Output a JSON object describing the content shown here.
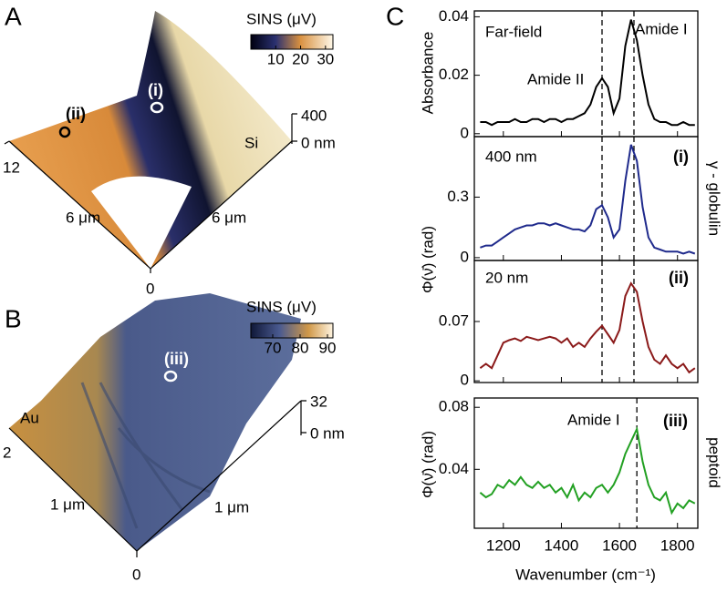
{
  "figure": {
    "panel_c_letter": "C",
    "ylabel_top": "Absorbance",
    "ylabel_mid": "Φ(ν̄) (rad)",
    "ylabel_bottom": "Φ(ν̄) (rad)",
    "side_label_mid": "γ - globulin",
    "side_label_bottom": "peptoid",
    "xlabel": "Wavenumber (cm⁻¹)"
  },
  "images": {
    "A": {
      "letter": "A",
      "colorbar_title": "SINS (μV)",
      "colorbar": {
        "range": [
          0,
          33
        ],
        "ticks": [
          10,
          20,
          30
        ]
      },
      "labels": {
        "i": "(i)",
        "ii": "(ii)",
        "si": "Si",
        "z_top": "400",
        "z_bottom": "0 nm",
        "y_top": "12",
        "y_mid": "6 μm",
        "x_mid": "6 μm",
        "origin": "0"
      }
    },
    "B": {
      "letter": "B",
      "colorbar_title": "SINS (μV)",
      "colorbar": {
        "range": [
          62,
          92
        ],
        "ticks": [
          70,
          80,
          90
        ]
      },
      "labels": {
        "iii": "(iii)",
        "au": "Au",
        "z_top": "32",
        "z_bottom": "0 nm",
        "y_top": "2",
        "y_mid": "1 μm",
        "x_mid": "1 μm",
        "origin": "0"
      }
    }
  },
  "chart_data": [
    {
      "type": "line",
      "label": "Far-field",
      "annotations": [
        "Amide II",
        "Amide I"
      ],
      "xlim": [
        1100,
        1870
      ],
      "ylim": [
        -0.001,
        0.042
      ],
      "yticks": [
        0,
        0.02,
        0.04
      ],
      "vlines": [
        1540,
        1650
      ],
      "x": [
        1120,
        1140,
        1160,
        1180,
        1200,
        1220,
        1240,
        1260,
        1280,
        1300,
        1320,
        1340,
        1360,
        1380,
        1400,
        1420,
        1440,
        1460,
        1480,
        1500,
        1520,
        1540,
        1560,
        1580,
        1600,
        1620,
        1640,
        1660,
        1680,
        1700,
        1720,
        1740,
        1760,
        1780,
        1800,
        1820,
        1840,
        1860
      ],
      "series": [
        {
          "color": "#000000",
          "values": [
            0.004,
            0.004,
            0.003,
            0.004,
            0.004,
            0.004,
            0.005,
            0.004,
            0.004,
            0.005,
            0.005,
            0.004,
            0.005,
            0.005,
            0.004,
            0.005,
            0.005,
            0.006,
            0.007,
            0.01,
            0.016,
            0.019,
            0.016,
            0.007,
            0.012,
            0.03,
            0.039,
            0.032,
            0.02,
            0.01,
            0.005,
            0.004,
            0.004,
            0.003,
            0.003,
            0.004,
            0.003,
            0.003
          ]
        }
      ]
    },
    {
      "type": "line",
      "label": "400 nm",
      "tag": "(i)",
      "xlim": [
        1100,
        1870
      ],
      "ylim": [
        -0.014,
        0.6
      ],
      "yticks": [
        0,
        0.3
      ],
      "vlines": [
        1540,
        1650
      ],
      "x": [
        1120,
        1140,
        1160,
        1180,
        1200,
        1220,
        1240,
        1260,
        1280,
        1300,
        1320,
        1340,
        1360,
        1380,
        1400,
        1420,
        1440,
        1460,
        1480,
        1500,
        1520,
        1540,
        1560,
        1580,
        1600,
        1620,
        1640,
        1660,
        1680,
        1700,
        1720,
        1740,
        1760,
        1780,
        1800,
        1820,
        1840,
        1860
      ],
      "series": [
        {
          "color": "#1f2a8c",
          "values": [
            0.05,
            0.06,
            0.06,
            0.08,
            0.1,
            0.12,
            0.14,
            0.15,
            0.16,
            0.16,
            0.17,
            0.17,
            0.16,
            0.17,
            0.16,
            0.15,
            0.14,
            0.14,
            0.13,
            0.16,
            0.24,
            0.26,
            0.2,
            0.1,
            0.14,
            0.38,
            0.56,
            0.48,
            0.25,
            0.1,
            0.05,
            0.04,
            0.03,
            0.03,
            0.03,
            0.02,
            0.03,
            0.02
          ]
        }
      ]
    },
    {
      "type": "line",
      "label": "20 nm",
      "tag": "(ii)",
      "xlim": [
        1100,
        1870
      ],
      "ylim": [
        -0.002,
        0.142
      ],
      "yticks": [
        0,
        0.07
      ],
      "vlines": [
        1540,
        1650
      ],
      "x": [
        1120,
        1140,
        1160,
        1180,
        1200,
        1220,
        1240,
        1260,
        1280,
        1300,
        1320,
        1340,
        1360,
        1380,
        1400,
        1420,
        1440,
        1460,
        1480,
        1500,
        1520,
        1540,
        1560,
        1580,
        1600,
        1620,
        1640,
        1660,
        1680,
        1700,
        1720,
        1740,
        1760,
        1780,
        1800,
        1820,
        1840,
        1860
      ],
      "series": [
        {
          "color": "#8b1a1a",
          "values": [
            0.015,
            0.02,
            0.015,
            0.03,
            0.045,
            0.048,
            0.05,
            0.047,
            0.052,
            0.05,
            0.048,
            0.05,
            0.052,
            0.05,
            0.045,
            0.05,
            0.04,
            0.045,
            0.04,
            0.05,
            0.058,
            0.065,
            0.055,
            0.045,
            0.06,
            0.1,
            0.115,
            0.105,
            0.07,
            0.04,
            0.025,
            0.02,
            0.03,
            0.02,
            0.015,
            0.02,
            0.01,
            0.015
          ]
        }
      ]
    },
    {
      "type": "line",
      "tag": "(iii)",
      "annotations": [
        "Amide I"
      ],
      "xlim": [
        1100,
        1870
      ],
      "ylim": [
        0.002,
        0.086
      ],
      "yticks": [
        0.04,
        0.08
      ],
      "xticks": [
        1200,
        1400,
        1600,
        1800
      ],
      "vlines": [
        1660
      ],
      "x": [
        1120,
        1140,
        1160,
        1180,
        1200,
        1220,
        1240,
        1260,
        1280,
        1300,
        1320,
        1340,
        1360,
        1380,
        1400,
        1420,
        1440,
        1460,
        1480,
        1500,
        1520,
        1540,
        1560,
        1580,
        1600,
        1620,
        1640,
        1660,
        1680,
        1700,
        1720,
        1740,
        1760,
        1780,
        1800,
        1820,
        1840,
        1860
      ],
      "series": [
        {
          "color": "#22a022",
          "values": [
            0.025,
            0.022,
            0.024,
            0.03,
            0.028,
            0.033,
            0.03,
            0.035,
            0.03,
            0.028,
            0.032,
            0.028,
            0.03,
            0.025,
            0.028,
            0.022,
            0.03,
            0.02,
            0.025,
            0.022,
            0.028,
            0.03,
            0.025,
            0.03,
            0.038,
            0.05,
            0.058,
            0.066,
            0.045,
            0.03,
            0.022,
            0.02,
            0.025,
            0.012,
            0.018,
            0.015,
            0.02,
            0.018
          ]
        }
      ]
    }
  ]
}
